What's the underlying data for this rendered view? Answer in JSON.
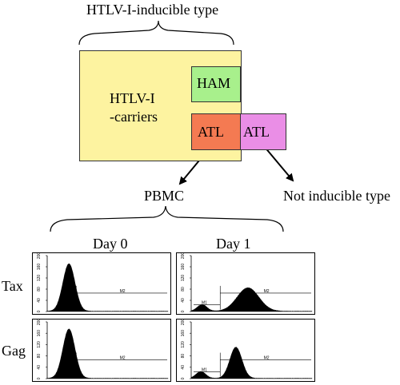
{
  "diagram": {
    "top_title": "HTLV-I-inducible type",
    "carriers_line1": "HTLV-I",
    "carriers_line2": "-carriers",
    "ham_label": "HAM",
    "atl_inducible_label": "ATL",
    "atl_not_inducible_label": "ATL",
    "pbmc_label": "PBMC",
    "not_inducible_label": "Not inducible type",
    "day0_label": "Day 0",
    "day1_label": "Day 1",
    "tax_label": "Tax",
    "gag_label": "Gag",
    "colors": {
      "carriers_fill": "#fdf3a0",
      "ham_fill": "#a8f08c",
      "atl_inducible_fill": "#f47a52",
      "atl_not_inducible_fill": "#ea8ee6"
    }
  },
  "chart_data": [
    {
      "type": "area",
      "name": "tax-day0",
      "y_ticks": [
        "0",
        "40",
        "80",
        "120",
        "160",
        "200"
      ],
      "gate_labels": [
        "M2"
      ],
      "peaks": [
        {
          "center": 0.18,
          "height": 0.85,
          "width": 0.05
        }
      ]
    },
    {
      "type": "area",
      "name": "tax-day1",
      "y_ticks": [
        "0",
        "40",
        "80",
        "120",
        "160",
        "200"
      ],
      "gate_labels": [
        "M1",
        "M2"
      ],
      "peaks": [
        {
          "center": 0.09,
          "height": 0.12,
          "width": 0.04
        },
        {
          "center": 0.47,
          "height": 0.42,
          "width": 0.09
        }
      ]
    },
    {
      "type": "area",
      "name": "gag-day0",
      "y_ticks": [
        "0",
        "40",
        "80",
        "120",
        "160",
        "200"
      ],
      "gate_labels": [
        "M2"
      ],
      "peaks": [
        {
          "center": 0.18,
          "height": 0.87,
          "width": 0.05
        }
      ]
    },
    {
      "type": "area",
      "name": "gag-day1",
      "y_ticks": [
        "0",
        "40",
        "80",
        "120",
        "160",
        "200"
      ],
      "gate_labels": [
        "M1",
        "M2"
      ],
      "peaks": [
        {
          "center": 0.08,
          "height": 0.12,
          "width": 0.04
        },
        {
          "center": 0.37,
          "height": 0.55,
          "width": 0.05
        }
      ]
    }
  ]
}
